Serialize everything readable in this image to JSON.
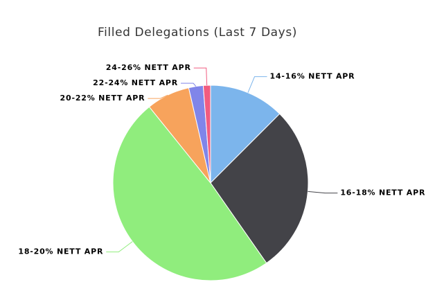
{
  "chart_data": {
    "type": "pie",
    "title": "Filled Delegations (Last 7 Days)",
    "categories": [
      "14-16% NETT APR",
      "16-18% NETT APR",
      "18-20% NETT APR",
      "20-22% NETT APR",
      "22-24% NETT APR",
      "24-26% NETT APR"
    ],
    "values": [
      12.5,
      27.8,
      48.9,
      7.2,
      2.4,
      1.2
    ],
    "colors": [
      "#7cb5ec",
      "#434348",
      "#90ed7d",
      "#f7a35c",
      "#8085e9",
      "#f15c80"
    ]
  }
}
